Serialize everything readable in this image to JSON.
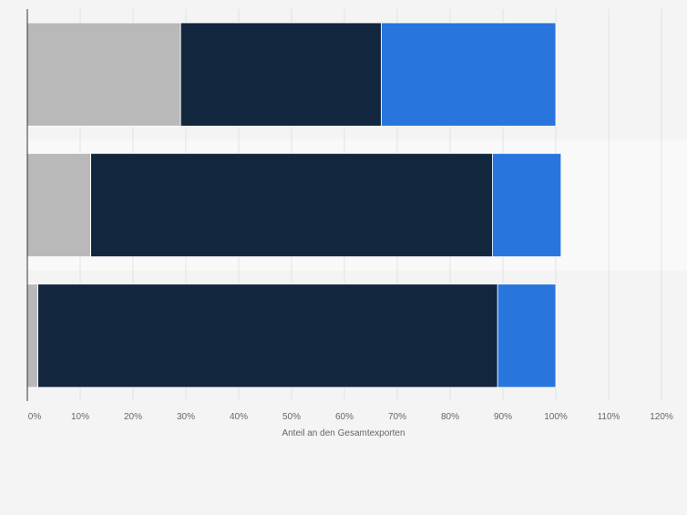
{
  "chart_data": {
    "type": "bar",
    "orientation": "horizontal",
    "stacked": true,
    "categories": [
      "",
      "",
      ""
    ],
    "series": [
      {
        "color": "#b9b9b9",
        "values": [
          29,
          12,
          2
        ]
      },
      {
        "color": "#12263e",
        "values": [
          38,
          76,
          87
        ]
      },
      {
        "color": "#2876dd",
        "values": [
          33,
          13,
          11
        ]
      }
    ],
    "xlabel": "Anteil an den Gesamtexporten",
    "xlim": [
      0,
      120
    ],
    "xticks": [
      "0%",
      "10%",
      "20%",
      "30%",
      "40%",
      "50%",
      "60%",
      "70%",
      "80%",
      "90%",
      "100%",
      "110%",
      "120%"
    ],
    "grid": true,
    "legend": "none"
  }
}
